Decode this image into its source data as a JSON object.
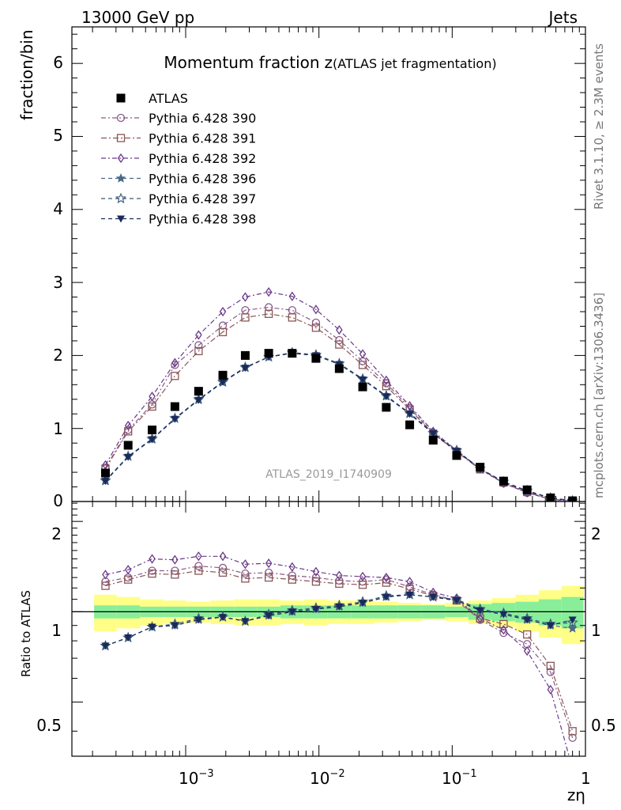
{
  "header": {
    "energy_label": "13000 GeV pp",
    "category_label": "Jets"
  },
  "side": {
    "rivet_label": "Rivet 3.1.10, ≥ 2.3M events",
    "source_label": "mcplots.cern.ch [arXiv:1306.3436]"
  },
  "chart_data": {
    "type": "line",
    "title": "Momentum fraction",
    "title_symbol": "z",
    "title_suffix": "(ATLAS jet fragmentation)",
    "xlabel": "zη",
    "xscale": "log",
    "xlim": [
      0.00014,
      1.0
    ],
    "ylabel": "fraction/bin",
    "ylim": [
      0,
      6.5
    ],
    "yticks": [
      "0",
      "1",
      "2",
      "3",
      "4",
      "5",
      "6"
    ],
    "xtick_labels": [
      "10",
      "10",
      "10",
      "1"
    ],
    "xtick_exponents": [
      "−3",
      "−2",
      "−1",
      ""
    ],
    "analysis_label": "ATLAS_2019_I1740909",
    "x": [
      0.00025,
      0.00037,
      0.00056,
      0.00083,
      0.00125,
      0.0019,
      0.0028,
      0.0042,
      0.0063,
      0.0095,
      0.0142,
      0.0213,
      0.032,
      0.048,
      0.072,
      0.108,
      0.162,
      0.243,
      0.365,
      0.547,
      0.8
    ],
    "data_series": {
      "name": "ATLAS",
      "values": [
        0.39,
        0.77,
        0.98,
        1.3,
        1.51,
        1.73,
        2.0,
        2.03,
        2.03,
        1.96,
        1.82,
        1.57,
        1.29,
        1.05,
        0.84,
        0.63,
        0.47,
        0.28,
        0.16,
        0.05,
        0.01
      ]
    },
    "series": [
      {
        "name": "Pythia 6.428 390",
        "color": "#8a5a8a",
        "marker": "circle-open",
        "dash": "6,3,2,3",
        "values": [
          0.46,
          0.98,
          1.33,
          1.87,
          2.14,
          2.41,
          2.62,
          2.66,
          2.62,
          2.45,
          2.21,
          1.92,
          1.62,
          1.28,
          0.94,
          0.69,
          0.44,
          0.25,
          0.12,
          0.03,
          0.003
        ]
      },
      {
        "name": "Pythia 6.428 391",
        "color": "#8a5656",
        "marker": "square-open",
        "dash": "7,3,2,3",
        "values": [
          0.45,
          0.96,
          1.3,
          1.72,
          2.06,
          2.32,
          2.52,
          2.57,
          2.52,
          2.38,
          2.15,
          1.87,
          1.58,
          1.26,
          0.93,
          0.68,
          0.44,
          0.26,
          0.13,
          0.033,
          0.004
        ]
      },
      {
        "name": "Pythia 6.428 392",
        "color": "#6a3a8a",
        "marker": "diamond-open",
        "dash": "6,3,2,3",
        "values": [
          0.5,
          1.04,
          1.44,
          1.9,
          2.28,
          2.6,
          2.8,
          2.87,
          2.81,
          2.63,
          2.35,
          2.02,
          1.66,
          1.31,
          0.96,
          0.7,
          0.45,
          0.25,
          0.12,
          0.03,
          0.002
        ]
      },
      {
        "name": "Pythia 6.428 396",
        "color": "#4a6a8a",
        "marker": "star-filled",
        "dash": "5,4",
        "values": [
          0.28,
          0.62,
          0.85,
          1.14,
          1.39,
          1.63,
          1.83,
          1.98,
          2.03,
          2.0,
          1.88,
          1.67,
          1.44,
          1.2,
          0.93,
          0.69,
          0.45,
          0.27,
          0.14,
          0.05,
          0.01
        ]
      },
      {
        "name": "Pythia 6.428 397",
        "color": "#3a5a7a",
        "marker": "star-open",
        "dash": "5,4",
        "values": [
          0.29,
          0.62,
          0.86,
          1.14,
          1.4,
          1.64,
          1.84,
          1.98,
          2.04,
          2.01,
          1.89,
          1.68,
          1.45,
          1.21,
          0.94,
          0.7,
          0.45,
          0.27,
          0.15,
          0.05,
          0.01
        ]
      },
      {
        "name": "Pythia 6.428 398",
        "color": "#1a2a5a",
        "marker": "triangle-down-filled",
        "dash": "5,4",
        "values": [
          0.28,
          0.61,
          0.85,
          1.13,
          1.39,
          1.64,
          1.83,
          1.98,
          2.03,
          2.0,
          1.88,
          1.67,
          1.44,
          1.2,
          0.93,
          0.69,
          0.45,
          0.27,
          0.14,
          0.05,
          0.01
        ]
      }
    ],
    "ratio": {
      "ylabel": "Ratio to ATLAS",
      "ylim": [
        0.33,
        2.33
      ],
      "yticks": [
        "0.5",
        "1",
        "2"
      ],
      "band_stat_low": [
        0.95,
        0.95,
        0.96,
        0.96,
        0.96,
        0.96,
        0.96,
        0.96,
        0.95,
        0.95,
        0.95,
        0.95,
        0.95,
        0.95,
        0.95,
        0.96,
        0.94,
        0.93,
        0.92,
        0.9,
        0.88
      ],
      "band_stat_high": [
        1.05,
        1.05,
        1.04,
        1.04,
        1.04,
        1.04,
        1.04,
        1.04,
        1.05,
        1.05,
        1.05,
        1.05,
        1.05,
        1.05,
        1.05,
        1.04,
        1.06,
        1.07,
        1.08,
        1.1,
        1.12
      ],
      "band_syst_low": [
        0.86,
        0.88,
        0.9,
        0.91,
        0.92,
        0.91,
        0.9,
        0.9,
        0.91,
        0.9,
        0.91,
        0.91,
        0.92,
        0.93,
        0.94,
        0.93,
        0.91,
        0.89,
        0.86,
        0.82,
        0.78
      ],
      "band_syst_high": [
        1.14,
        1.12,
        1.1,
        1.09,
        1.08,
        1.09,
        1.1,
        1.1,
        1.09,
        1.1,
        1.09,
        1.09,
        1.08,
        1.07,
        1.06,
        1.07,
        1.09,
        1.11,
        1.14,
        1.18,
        1.22
      ],
      "series": [
        {
          "name": "Pythia 6.428 390",
          "values": [
            1.26,
            1.3,
            1.37,
            1.37,
            1.42,
            1.4,
            1.34,
            1.35,
            1.32,
            1.3,
            1.27,
            1.26,
            1.28,
            1.21,
            1.14,
            1.09,
            0.94,
            0.85,
            0.78,
            0.63,
            0.38
          ]
        },
        {
          "name": "Pythia 6.428 391",
          "values": [
            1.22,
            1.28,
            1.34,
            1.33,
            1.37,
            1.35,
            1.29,
            1.3,
            1.28,
            1.26,
            1.24,
            1.23,
            1.25,
            1.19,
            1.13,
            1.09,
            0.95,
            0.91,
            0.84,
            0.66,
            0.4
          ]
        },
        {
          "name": "Pythia 6.428 392",
          "values": [
            1.33,
            1.38,
            1.5,
            1.49,
            1.53,
            1.53,
            1.44,
            1.45,
            1.41,
            1.36,
            1.32,
            1.31,
            1.3,
            1.26,
            1.16,
            1.11,
            0.95,
            0.87,
            0.74,
            0.55,
            0.3
          ]
        },
        {
          "name": "Pythia 6.428 396",
          "values": [
            0.77,
            0.82,
            0.89,
            0.9,
            0.94,
            0.96,
            0.93,
            0.97,
            1.0,
            1.02,
            1.04,
            1.07,
            1.12,
            1.14,
            1.12,
            1.09,
            1.01,
            0.99,
            0.94,
            0.9,
            0.88
          ]
        },
        {
          "name": "Pythia 6.428 397",
          "values": [
            0.77,
            0.82,
            0.89,
            0.91,
            0.95,
            0.96,
            0.93,
            0.98,
            1.01,
            1.03,
            1.05,
            1.08,
            1.13,
            1.14,
            1.12,
            1.1,
            1.02,
            0.99,
            0.95,
            0.91,
            0.92
          ]
        },
        {
          "name": "Pythia 6.428 398",
          "values": [
            0.77,
            0.82,
            0.89,
            0.9,
            0.94,
            0.96,
            0.93,
            0.97,
            1.0,
            1.02,
            1.04,
            1.07,
            1.12,
            1.14,
            1.12,
            1.09,
            1.01,
            0.98,
            0.94,
            0.9,
            0.94
          ]
        }
      ]
    }
  }
}
